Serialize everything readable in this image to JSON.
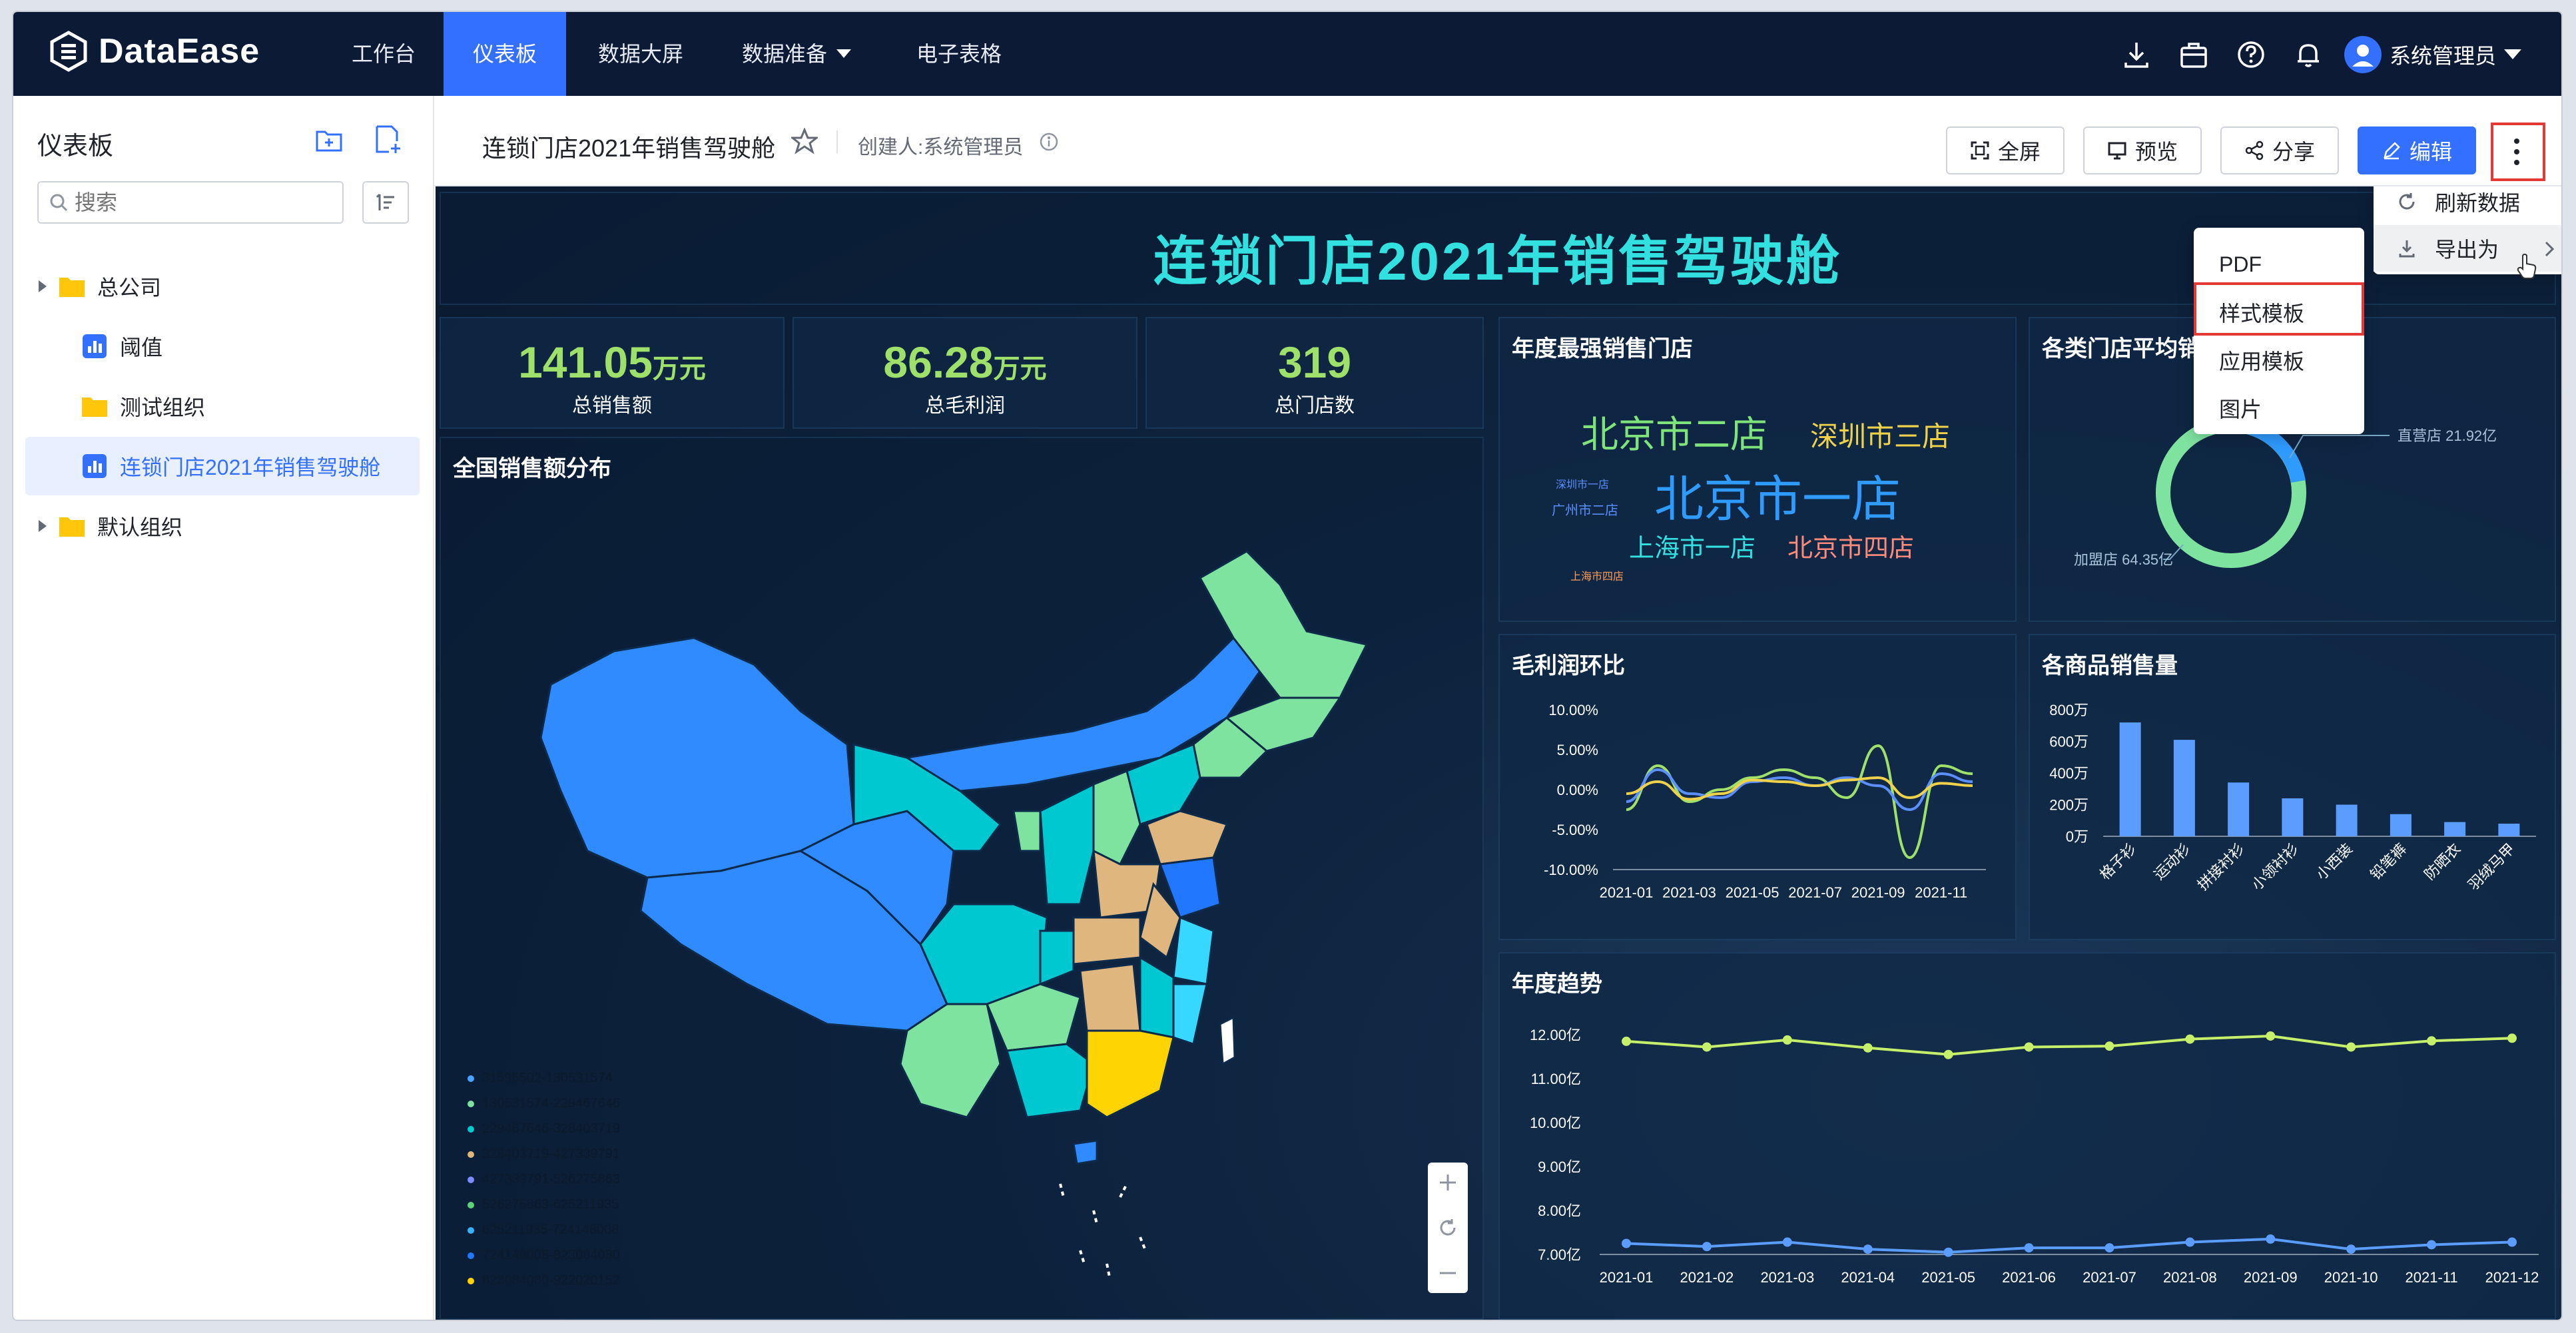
{
  "app": {
    "name": "DataEase"
  },
  "nav": {
    "items": [
      "工作台",
      "仪表板",
      "数据大屏",
      "数据准备",
      "电子表格"
    ],
    "active_index": 1,
    "user": "系统管理员"
  },
  "sidebar": {
    "title": "仪表板",
    "search_placeholder": "搜索",
    "items": [
      {
        "label": "总公司",
        "type": "folder",
        "expandable": true
      },
      {
        "label": "阈值",
        "type": "dashboard"
      },
      {
        "label": "测试组织",
        "type": "folder"
      },
      {
        "label": "连锁门店2021年销售驾驶舱",
        "type": "dashboard",
        "active": true
      },
      {
        "label": "默认组织",
        "type": "folder",
        "expandable": true
      }
    ]
  },
  "header": {
    "title": "连锁门店2021年销售驾驶舱",
    "creator": "创建人:系统管理员",
    "buttons": {
      "fullscreen": "全屏",
      "preview": "预览",
      "share": "分享",
      "edit": "编辑"
    }
  },
  "more_menu": {
    "items": [
      "刷新数据",
      "导出为"
    ],
    "export_submenu": [
      "PDF",
      "样式模板",
      "应用模板",
      "图片"
    ],
    "highlighted": "样式模板"
  },
  "dashboard": {
    "title": "连锁门店2021年销售驾驶舱",
    "kpis": [
      {
        "value": "141.05",
        "unit": "万元",
        "label": "总销售额"
      },
      {
        "value": "86.28",
        "unit": "万元",
        "label": "总毛利润"
      },
      {
        "value": "319",
        "unit": "",
        "label": "总门店数"
      }
    ],
    "map": {
      "title": "全国销售额分布",
      "legend": [
        {
          "label": "31595502-130531574",
          "color": "#4aa3ff"
        },
        {
          "label": "130531574-229467646",
          "color": "#7fe3a0"
        },
        {
          "label": "229467646-328403719",
          "color": "#00c8d0"
        },
        {
          "label": "328403719-427339791",
          "color": "#dfb67e"
        },
        {
          "label": "427339791-526275863",
          "color": "#7d8cff"
        },
        {
          "label": "526275863-625211935",
          "color": "#5fd07a"
        },
        {
          "label": "625211935-724148008",
          "color": "#36b3ff"
        },
        {
          "label": "724148008-823084080",
          "color": "#2277ff"
        },
        {
          "label": "823084080-922020152",
          "color": "#ffd400"
        }
      ]
    },
    "wordcloud": {
      "title": "年度最强销售门店",
      "words": [
        {
          "text": "北京市二店",
          "color": "#7ee37a"
        },
        {
          "text": "深圳市三店",
          "color": "#f0d24a"
        },
        {
          "text": "深圳市一店",
          "color": "#5b8fff"
        },
        {
          "text": "北京市一店",
          "color": "#2f9bff"
        },
        {
          "text": "广州市二店",
          "color": "#5b8fff"
        },
        {
          "text": "上海市一店",
          "color": "#33e0e0"
        },
        {
          "text": "北京市四店",
          "color": "#ff8a7a"
        },
        {
          "text": "上海市四店",
          "color": "#ff9c57"
        }
      ]
    },
    "donut": {
      "title": "各类门店平均销",
      "labels": [
        "直营店 21.92亿",
        "加盟店 64.35亿"
      ]
    },
    "colors": {
      "accent": "#3370ff",
      "kpi": "#9fe06b",
      "title": "#33e0e0",
      "nav_bg": "#0c1a36"
    }
  },
  "chart_data": [
    {
      "type": "line",
      "title": "毛利润环比",
      "x": [
        "2021-01",
        "2021-02",
        "2021-03",
        "2021-04",
        "2021-05",
        "2021-06",
        "2021-07",
        "2021-08",
        "2021-09",
        "2021-10",
        "2021-11",
        "2021-12"
      ],
      "x_tick_labels": [
        "2021-01",
        "2021-03",
        "2021-05",
        "2021-07",
        "2021-09",
        "2021-11"
      ],
      "y_tick_labels": [
        "10.00%",
        "5.00%",
        "0.00%",
        "-5.00%",
        "-10.00%"
      ],
      "ylim": [
        -10,
        10
      ],
      "series": [
        {
          "color": "#9fe06b",
          "values": [
            -2.5,
            3,
            -1.5,
            0,
            1.5,
            2.5,
            1.5,
            -1,
            5.5,
            -8.5,
            3,
            2
          ]
        },
        {
          "color": "#5b8fff",
          "values": [
            -1.5,
            2.5,
            -0.5,
            -1,
            1,
            1.5,
            0.5,
            1.5,
            0.5,
            -2.5,
            2,
            1
          ]
        },
        {
          "color": "#f0d24a",
          "values": [
            -0.5,
            1,
            -1.2,
            -0.5,
            1.2,
            1,
            0.5,
            1.2,
            1.5,
            -1,
            0.8,
            0.5
          ]
        }
      ]
    },
    {
      "type": "bar",
      "title": "各商品销售量",
      "categories": [
        "格子衫",
        "运动衫",
        "拼接衬衫",
        "小领衬衫",
        "小西装",
        "铅笔裤",
        "防晒衣",
        "羽绒马甲"
      ],
      "values": [
        720,
        610,
        340,
        240,
        200,
        140,
        90,
        80
      ],
      "y_tick_labels": [
        "800万",
        "600万",
        "400万",
        "200万",
        "0万"
      ],
      "ylim": [
        0,
        800
      ]
    },
    {
      "type": "line",
      "title": "年度趋势",
      "x": [
        "2021-01",
        "2021-02",
        "2021-03",
        "2021-04",
        "2021-05",
        "2021-06",
        "2021-07",
        "2021-08",
        "2021-09",
        "2021-10",
        "2021-11",
        "2021-12"
      ],
      "y_tick_labels": [
        "12.00亿",
        "11.00亿",
        "10.00亿",
        "9.00亿",
        "8.00亿",
        "7.00亿"
      ],
      "ylim": [
        7,
        12
      ],
      "series": [
        {
          "color": "#c6ef6a",
          "values": [
            11.85,
            11.72,
            11.88,
            11.7,
            11.55,
            11.72,
            11.74,
            11.9,
            11.97,
            11.72,
            11.86,
            11.92
          ]
        },
        {
          "color": "#5b9dff",
          "values": [
            7.25,
            7.18,
            7.28,
            7.12,
            7.05,
            7.15,
            7.15,
            7.28,
            7.35,
            7.12,
            7.22,
            7.28
          ]
        }
      ]
    }
  ]
}
